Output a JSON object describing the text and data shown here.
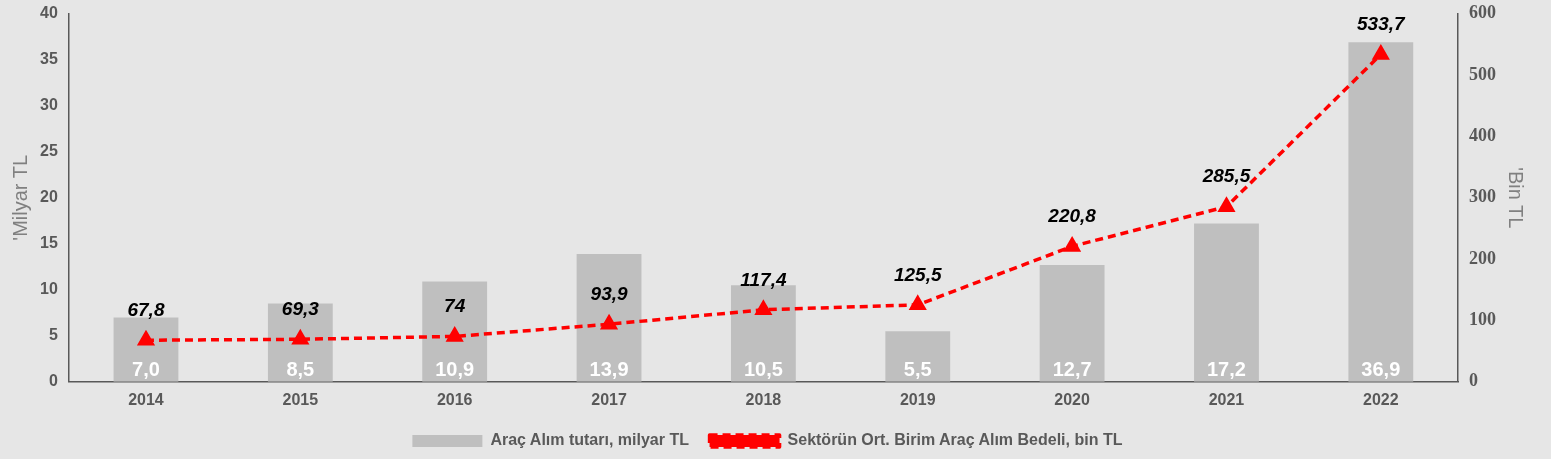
{
  "chart_data": {
    "type": "bar",
    "ylabel": "'Milyar TL",
    "y2label": "'Bin TL",
    "categories": [
      "2014",
      "2015",
      "2016",
      "2017",
      "2018",
      "2019",
      "2020",
      "2021",
      "2022"
    ],
    "series": [
      {
        "name": "Araç Alım tutarı, milyar TL",
        "color": "#bfbfbf",
        "values": [
          7.0,
          8.5,
          10.9,
          13.9,
          10.5,
          5.5,
          12.7,
          17.2,
          36.9
        ],
        "value_labels": [
          "7,0",
          "8,5",
          "10,9",
          "13,9",
          "10,5",
          "5,5",
          "12,7",
          "17,2",
          "36,9"
        ]
      },
      {
        "name": "Sektörün Ort. Birim Araç Alım Bedeli, bin TL",
        "type": "line",
        "axis": "y2",
        "color": "#ff0000",
        "marker": "triangle",
        "line_style": "dashed",
        "values": [
          67.8,
          69.3,
          74,
          93.9,
          117.4,
          125.5,
          220.8,
          285.5,
          533.7
        ],
        "value_labels": [
          "67,8",
          "69,3",
          "74",
          "93,9",
          "117,4",
          "125,5",
          "220,8",
          "285,5",
          "533,7"
        ]
      }
    ],
    "ylim": [
      0,
      40
    ],
    "yticks": [
      0,
      5,
      10,
      15,
      20,
      25,
      30,
      35,
      40
    ],
    "y2lim": [
      0,
      600
    ],
    "y2ticks": [
      0,
      100,
      200,
      300,
      400,
      500,
      600
    ],
    "grid": false,
    "legend": "bottom"
  }
}
